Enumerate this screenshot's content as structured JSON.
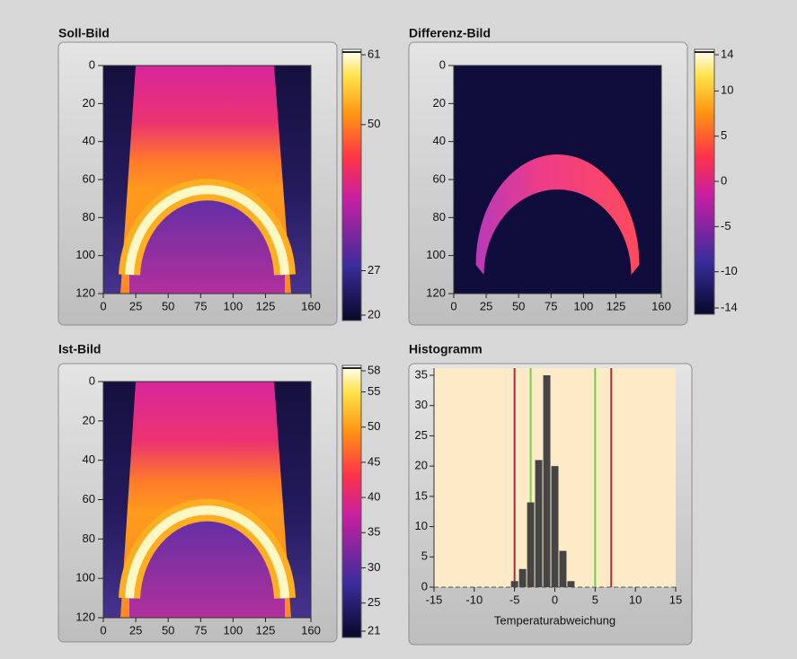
{
  "chart_data": [
    {
      "type": "heatmap",
      "title": "Soll-Bild",
      "xlim": [
        0,
        160
      ],
      "xticks": [
        0,
        25,
        50,
        75,
        100,
        125,
        160
      ],
      "ylim": [
        0,
        120
      ],
      "yticks": [
        0,
        20,
        40,
        60,
        80,
        100,
        120
      ],
      "y_inverted": true,
      "clim": [
        20,
        61
      ],
      "cticks": [
        61,
        50,
        27,
        20
      ]
    },
    {
      "type": "heatmap",
      "title": "Differenz-Bild",
      "xlim": [
        0,
        160
      ],
      "xticks": [
        0,
        25,
        50,
        75,
        100,
        125,
        160
      ],
      "ylim": [
        0,
        120
      ],
      "yticks": [
        0,
        20,
        40,
        60,
        80,
        100,
        120
      ],
      "y_inverted": true,
      "clim": [
        -14,
        14
      ],
      "cticks": [
        14,
        10,
        5,
        0,
        -5,
        -10,
        -14
      ]
    },
    {
      "type": "heatmap",
      "title": "Ist-Bild",
      "xlim": [
        0,
        160
      ],
      "xticks": [
        0,
        25,
        50,
        75,
        100,
        125,
        160
      ],
      "ylim": [
        0,
        120
      ],
      "yticks": [
        0,
        20,
        40,
        60,
        80,
        100,
        120
      ],
      "y_inverted": true,
      "clim": [
        21,
        58
      ],
      "cticks": [
        58,
        55,
        50,
        45,
        40,
        35,
        30,
        25,
        21
      ]
    },
    {
      "type": "histogram",
      "title": "Histogramm",
      "xlabel": "Temperaturabweichung",
      "color": "#454545",
      "background": "#fcebc6",
      "bins": [
        -5.5,
        -4.5,
        -3.5,
        -2.5,
        -1.5,
        -0.5,
        0.5,
        1.5,
        2.5
      ],
      "values": [
        1,
        3,
        14,
        21,
        35,
        20,
        6,
        1
      ],
      "xlim": [
        -15,
        15
      ],
      "xticks": [
        -15,
        -10,
        -5,
        0,
        5,
        10,
        15
      ],
      "ylim": [
        0,
        35
      ],
      "yticks": [
        0,
        5,
        10,
        15,
        20,
        25,
        30,
        35
      ],
      "markers": [
        {
          "x": -5,
          "color": "#b3283a"
        },
        {
          "x": -3,
          "color": "#6fd24a"
        },
        {
          "x": 5,
          "color": "#6fd24a"
        },
        {
          "x": 7,
          "color": "#b3283a"
        }
      ]
    }
  ]
}
